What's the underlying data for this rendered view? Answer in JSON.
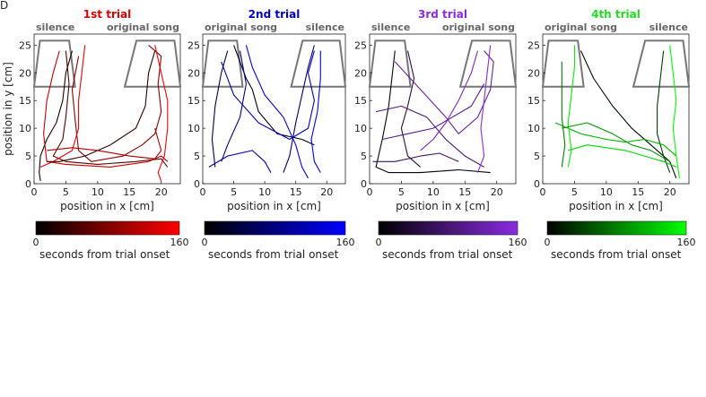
{
  "panel_letter": "D",
  "chart_data": [
    {
      "type": "line",
      "title": "1st trial",
      "accent": "#e00000",
      "left_zone_label": "silence",
      "right_zone_label": "original song",
      "xlabel": "position in x [cm]",
      "ylabel": "position in y [cm]",
      "xlim": [
        0,
        23
      ],
      "ylim": [
        0,
        27
      ],
      "xticks": [
        0,
        5,
        10,
        15,
        20
      ],
      "yticks": [
        0,
        5,
        10,
        15,
        20,
        25
      ],
      "arena_zone_y": [
        17.5,
        25.8
      ],
      "colorbar": {
        "min_label": "0",
        "max_label": "160",
        "label": "seconds from trial onset",
        "start": "#000000",
        "end": "#ff0000"
      },
      "tracks": [
        {
          "t": 0.1,
          "points": [
            [
              6,
              24
            ],
            [
              5,
              20
            ],
            [
              4.5,
              15
            ],
            [
              3.5,
              11
            ],
            [
              2,
              8
            ],
            [
              1,
              5
            ],
            [
              0.8,
              2
            ],
            [
              1,
              0.5
            ]
          ]
        },
        {
          "t": 0.35,
          "points": [
            [
              5,
              24
            ],
            [
              5.5,
              18
            ],
            [
              5,
              12
            ],
            [
              4.5,
              8
            ],
            [
              3,
              5
            ],
            [
              5,
              4
            ],
            [
              10,
              3.5
            ],
            [
              16,
              4
            ],
            [
              20,
              4.5
            ],
            [
              21,
              3
            ]
          ]
        },
        {
          "t": 0.55,
          "points": [
            [
              7,
              23
            ],
            [
              6,
              17
            ],
            [
              6.5,
              11
            ],
            [
              7,
              6
            ],
            [
              9,
              4
            ],
            [
              14,
              5
            ],
            [
              17,
              7
            ],
            [
              19,
              9
            ],
            [
              20,
              13
            ],
            [
              19.5,
              18
            ],
            [
              20,
              23
            ],
            [
              18,
              25
            ]
          ]
        },
        {
          "t": 0.8,
          "points": [
            [
              4,
              24
            ],
            [
              3,
              20
            ],
            [
              2,
              15
            ],
            [
              1.5,
              9
            ],
            [
              2,
              4
            ],
            [
              5,
              3.5
            ],
            [
              12,
              3
            ],
            [
              18,
              4
            ],
            [
              20,
              5
            ],
            [
              21,
              4
            ]
          ]
        },
        {
          "t": 0.92,
          "points": [
            [
              8,
              25
            ],
            [
              7.5,
              20
            ],
            [
              7,
              15
            ],
            [
              7,
              10
            ],
            [
              6,
              6
            ],
            [
              3,
              4
            ],
            [
              1,
              3
            ]
          ]
        },
        {
          "t": 0.2,
          "points": [
            [
              19,
              24
            ],
            [
              18,
              20
            ],
            [
              17.5,
              14
            ],
            [
              16,
              10
            ],
            [
              12,
              7
            ],
            [
              8,
              5
            ],
            [
              4,
              4
            ],
            [
              2,
              4
            ]
          ]
        },
        {
          "t": 1.0,
          "points": [
            [
              19,
              25
            ],
            [
              20,
              20
            ],
            [
              21,
              15
            ],
            [
              21,
              10
            ],
            [
              20.5,
              5
            ],
            [
              19.5,
              2
            ],
            [
              20,
              0.5
            ]
          ]
        },
        {
          "t": 0.65,
          "points": [
            [
              2,
              6
            ],
            [
              6,
              6.5
            ],
            [
              10,
              6
            ],
            [
              15,
              5
            ],
            [
              19,
              4.5
            ],
            [
              20,
              6
            ],
            [
              19,
              10
            ]
          ]
        }
      ]
    },
    {
      "type": "line",
      "title": "2nd trial",
      "accent": "#0000cc",
      "left_zone_label": "original song",
      "right_zone_label": "silence",
      "xlabel": "position in x [cm]",
      "ylabel": "",
      "xlim": [
        0,
        23
      ],
      "ylim": [
        0,
        27
      ],
      "xticks": [
        0,
        5,
        10,
        15,
        20
      ],
      "yticks": [
        0,
        5,
        10,
        15,
        20,
        25
      ],
      "arena_zone_y": [
        17.5,
        25.8
      ],
      "colorbar": {
        "min_label": "0",
        "max_label": "160",
        "label": "seconds from trial onset",
        "start": "#000000",
        "end": "#0000ff"
      },
      "tracks": [
        {
          "t": 0.05,
          "points": [
            [
              5,
              25
            ],
            [
              6,
              22
            ],
            [
              7,
              19
            ],
            [
              8,
              17
            ],
            [
              9,
              13
            ],
            [
              12,
              9
            ],
            [
              16,
              8
            ],
            [
              18,
              7
            ]
          ]
        },
        {
          "t": 0.3,
          "points": [
            [
              4,
              24
            ],
            [
              3,
              20
            ],
            [
              2,
              14
            ],
            [
              1.5,
              8
            ],
            [
              2,
              3
            ]
          ]
        },
        {
          "t": 0.55,
          "points": [
            [
              6,
              24
            ],
            [
              7,
              18
            ],
            [
              6,
              12
            ],
            [
              4,
              7
            ],
            [
              3,
              4
            ]
          ]
        },
        {
          "t": 0.8,
          "points": [
            [
              3,
              22
            ],
            [
              5,
              16
            ],
            [
              9,
              11
            ],
            [
              14,
              8
            ],
            [
              17,
              10
            ],
            [
              18,
              15
            ],
            [
              17,
              20
            ],
            [
              18,
              24
            ]
          ]
        },
        {
          "t": 0.95,
          "points": [
            [
              7,
              25
            ],
            [
              8,
              21
            ],
            [
              10,
              16
            ],
            [
              13,
              12
            ],
            [
              15,
              7
            ],
            [
              16,
              3
            ],
            [
              17,
              1
            ]
          ]
        },
        {
          "t": 0.45,
          "points": [
            [
              18,
              25
            ],
            [
              17,
              21
            ],
            [
              16,
              16
            ],
            [
              15,
              11
            ],
            [
              14,
              5
            ],
            [
              13,
              2
            ]
          ]
        },
        {
          "t": 1.0,
          "points": [
            [
              19,
              24
            ],
            [
              19,
              19
            ],
            [
              18.5,
              13
            ],
            [
              17.5,
              8
            ],
            [
              18,
              4
            ],
            [
              19,
              2
            ]
          ]
        },
        {
          "t": 0.7,
          "points": [
            [
              1,
              3
            ],
            [
              4,
              5
            ],
            [
              8,
              6
            ],
            [
              10,
              4
            ],
            [
              11,
              2
            ]
          ]
        }
      ]
    },
    {
      "type": "line",
      "title": "3rd trial",
      "accent": "#8a2be2",
      "left_zone_label": "silence",
      "right_zone_label": "original song",
      "xlabel": "position in x [cm]",
      "ylabel": "",
      "xlim": [
        0,
        23
      ],
      "ylim": [
        0,
        27
      ],
      "xticks": [
        0,
        5,
        10,
        15,
        20
      ],
      "yticks": [
        0,
        5,
        10,
        15,
        20,
        25
      ],
      "arena_zone_y": [
        17.5,
        25.8
      ],
      "colorbar": {
        "min_label": "0",
        "max_label": "160",
        "label": "seconds from trial onset",
        "start": "#000000",
        "end": "#8a2be2"
      },
      "tracks": [
        {
          "t": 0.05,
          "points": [
            [
              4,
              24
            ],
            [
              3.5,
              19
            ],
            [
              3,
              14
            ],
            [
              2,
              8
            ],
            [
              1,
              3
            ],
            [
              3,
              2
            ],
            [
              8,
              2
            ],
            [
              14,
              2.5
            ],
            [
              19,
              2
            ]
          ]
        },
        {
          "t": 0.3,
          "points": [
            [
              6,
              24
            ],
            [
              7,
              19
            ],
            [
              6,
              14
            ],
            [
              5,
              10
            ],
            [
              6,
              5
            ],
            [
              8,
              3
            ]
          ]
        },
        {
          "t": 0.55,
          "points": [
            [
              1,
              13
            ],
            [
              5,
              14
            ],
            [
              9,
              12
            ],
            [
              12,
              8
            ],
            [
              15,
              5
            ],
            [
              18,
              3
            ]
          ]
        },
        {
          "t": 0.75,
          "points": [
            [
              4,
              22
            ],
            [
              8,
              17
            ],
            [
              12,
              12
            ],
            [
              14,
              9
            ],
            [
              17,
              12
            ],
            [
              19,
              17
            ],
            [
              19.5,
              22
            ],
            [
              18,
              24
            ]
          ]
        },
        {
          "t": 0.9,
          "points": [
            [
              17,
              24
            ],
            [
              16,
              20
            ],
            [
              14,
              15
            ],
            [
              12,
              11
            ],
            [
              10,
              8
            ],
            [
              8,
              6
            ]
          ]
        },
        {
          "t": 1.0,
          "points": [
            [
              19,
              25
            ],
            [
              18.5,
              20
            ],
            [
              18,
              15
            ],
            [
              17.5,
              10
            ],
            [
              18,
              5
            ],
            [
              17,
              2
            ]
          ]
        },
        {
          "t": 0.45,
          "points": [
            [
              0.5,
              4
            ],
            [
              4,
              4
            ],
            [
              8,
              5
            ],
            [
              11,
              5.5
            ],
            [
              14,
              4
            ]
          ]
        },
        {
          "t": 0.65,
          "points": [
            [
              2,
              8
            ],
            [
              6,
              9
            ],
            [
              10,
              10
            ],
            [
              13,
              12
            ],
            [
              16,
              14
            ],
            [
              18,
              18
            ]
          ]
        }
      ]
    },
    {
      "type": "line",
      "title": "4th trial",
      "accent": "#22dd22",
      "left_zone_label": "original song",
      "right_zone_label": "silence",
      "xlabel": "position in x [cm]",
      "ylabel": "",
      "xlim": [
        0,
        23
      ],
      "ylim": [
        0,
        27
      ],
      "xticks": [
        0,
        5,
        10,
        15,
        20
      ],
      "yticks": [
        0,
        5,
        10,
        15,
        20,
        25
      ],
      "arena_zone_y": [
        17.5,
        25.8
      ],
      "colorbar": {
        "min_label": "0",
        "max_label": "160",
        "label": "seconds from trial onset",
        "start": "#000000",
        "end": "#00ff00"
      },
      "tracks": [
        {
          "t": 0.05,
          "points": [
            [
              6,
              24
            ],
            [
              8,
              19
            ],
            [
              11,
              14
            ],
            [
              14,
              10
            ],
            [
              17,
              7
            ],
            [
              20,
              4
            ],
            [
              21,
              1
            ]
          ]
        },
        {
          "t": 0.25,
          "points": [
            [
              19,
              24
            ],
            [
              18.5,
              19
            ],
            [
              18,
              14
            ],
            [
              18,
              9
            ],
            [
              19,
              5
            ],
            [
              20,
              2
            ]
          ]
        },
        {
          "t": 0.5,
          "points": [
            [
              3,
              22
            ],
            [
              3,
              17
            ],
            [
              3,
              12
            ],
            [
              3.5,
              7
            ],
            [
              3,
              3
            ]
          ]
        },
        {
          "t": 0.7,
          "points": [
            [
              2,
              11
            ],
            [
              6,
              9
            ],
            [
              10,
              8
            ],
            [
              13,
              7.5
            ],
            [
              16,
              8
            ],
            [
              19,
              7
            ],
            [
              21,
              5
            ]
          ]
        },
        {
          "t": 0.85,
          "points": [
            [
              4,
              6
            ],
            [
              7,
              7
            ],
            [
              10,
              6.5
            ],
            [
              13,
              6
            ],
            [
              16,
              5
            ],
            [
              19,
              4
            ],
            [
              21,
              3
            ]
          ]
        },
        {
          "t": 0.95,
          "points": [
            [
              5,
              25
            ],
            [
              5,
              21
            ],
            [
              4.5,
              16
            ],
            [
              4,
              11
            ],
            [
              4.5,
              6
            ],
            [
              4,
              3
            ]
          ]
        },
        {
          "t": 1.0,
          "points": [
            [
              20,
              25
            ],
            [
              20.5,
              20
            ],
            [
              21,
              15
            ],
            [
              20.5,
              10
            ],
            [
              21,
              5
            ],
            [
              21.5,
              1
            ]
          ]
        },
        {
          "t": 0.6,
          "points": [
            [
              3,
              10
            ],
            [
              7,
              11
            ],
            [
              11,
              9
            ],
            [
              14,
              7
            ],
            [
              17,
              6
            ],
            [
              20,
              4
            ]
          ]
        }
      ]
    }
  ]
}
